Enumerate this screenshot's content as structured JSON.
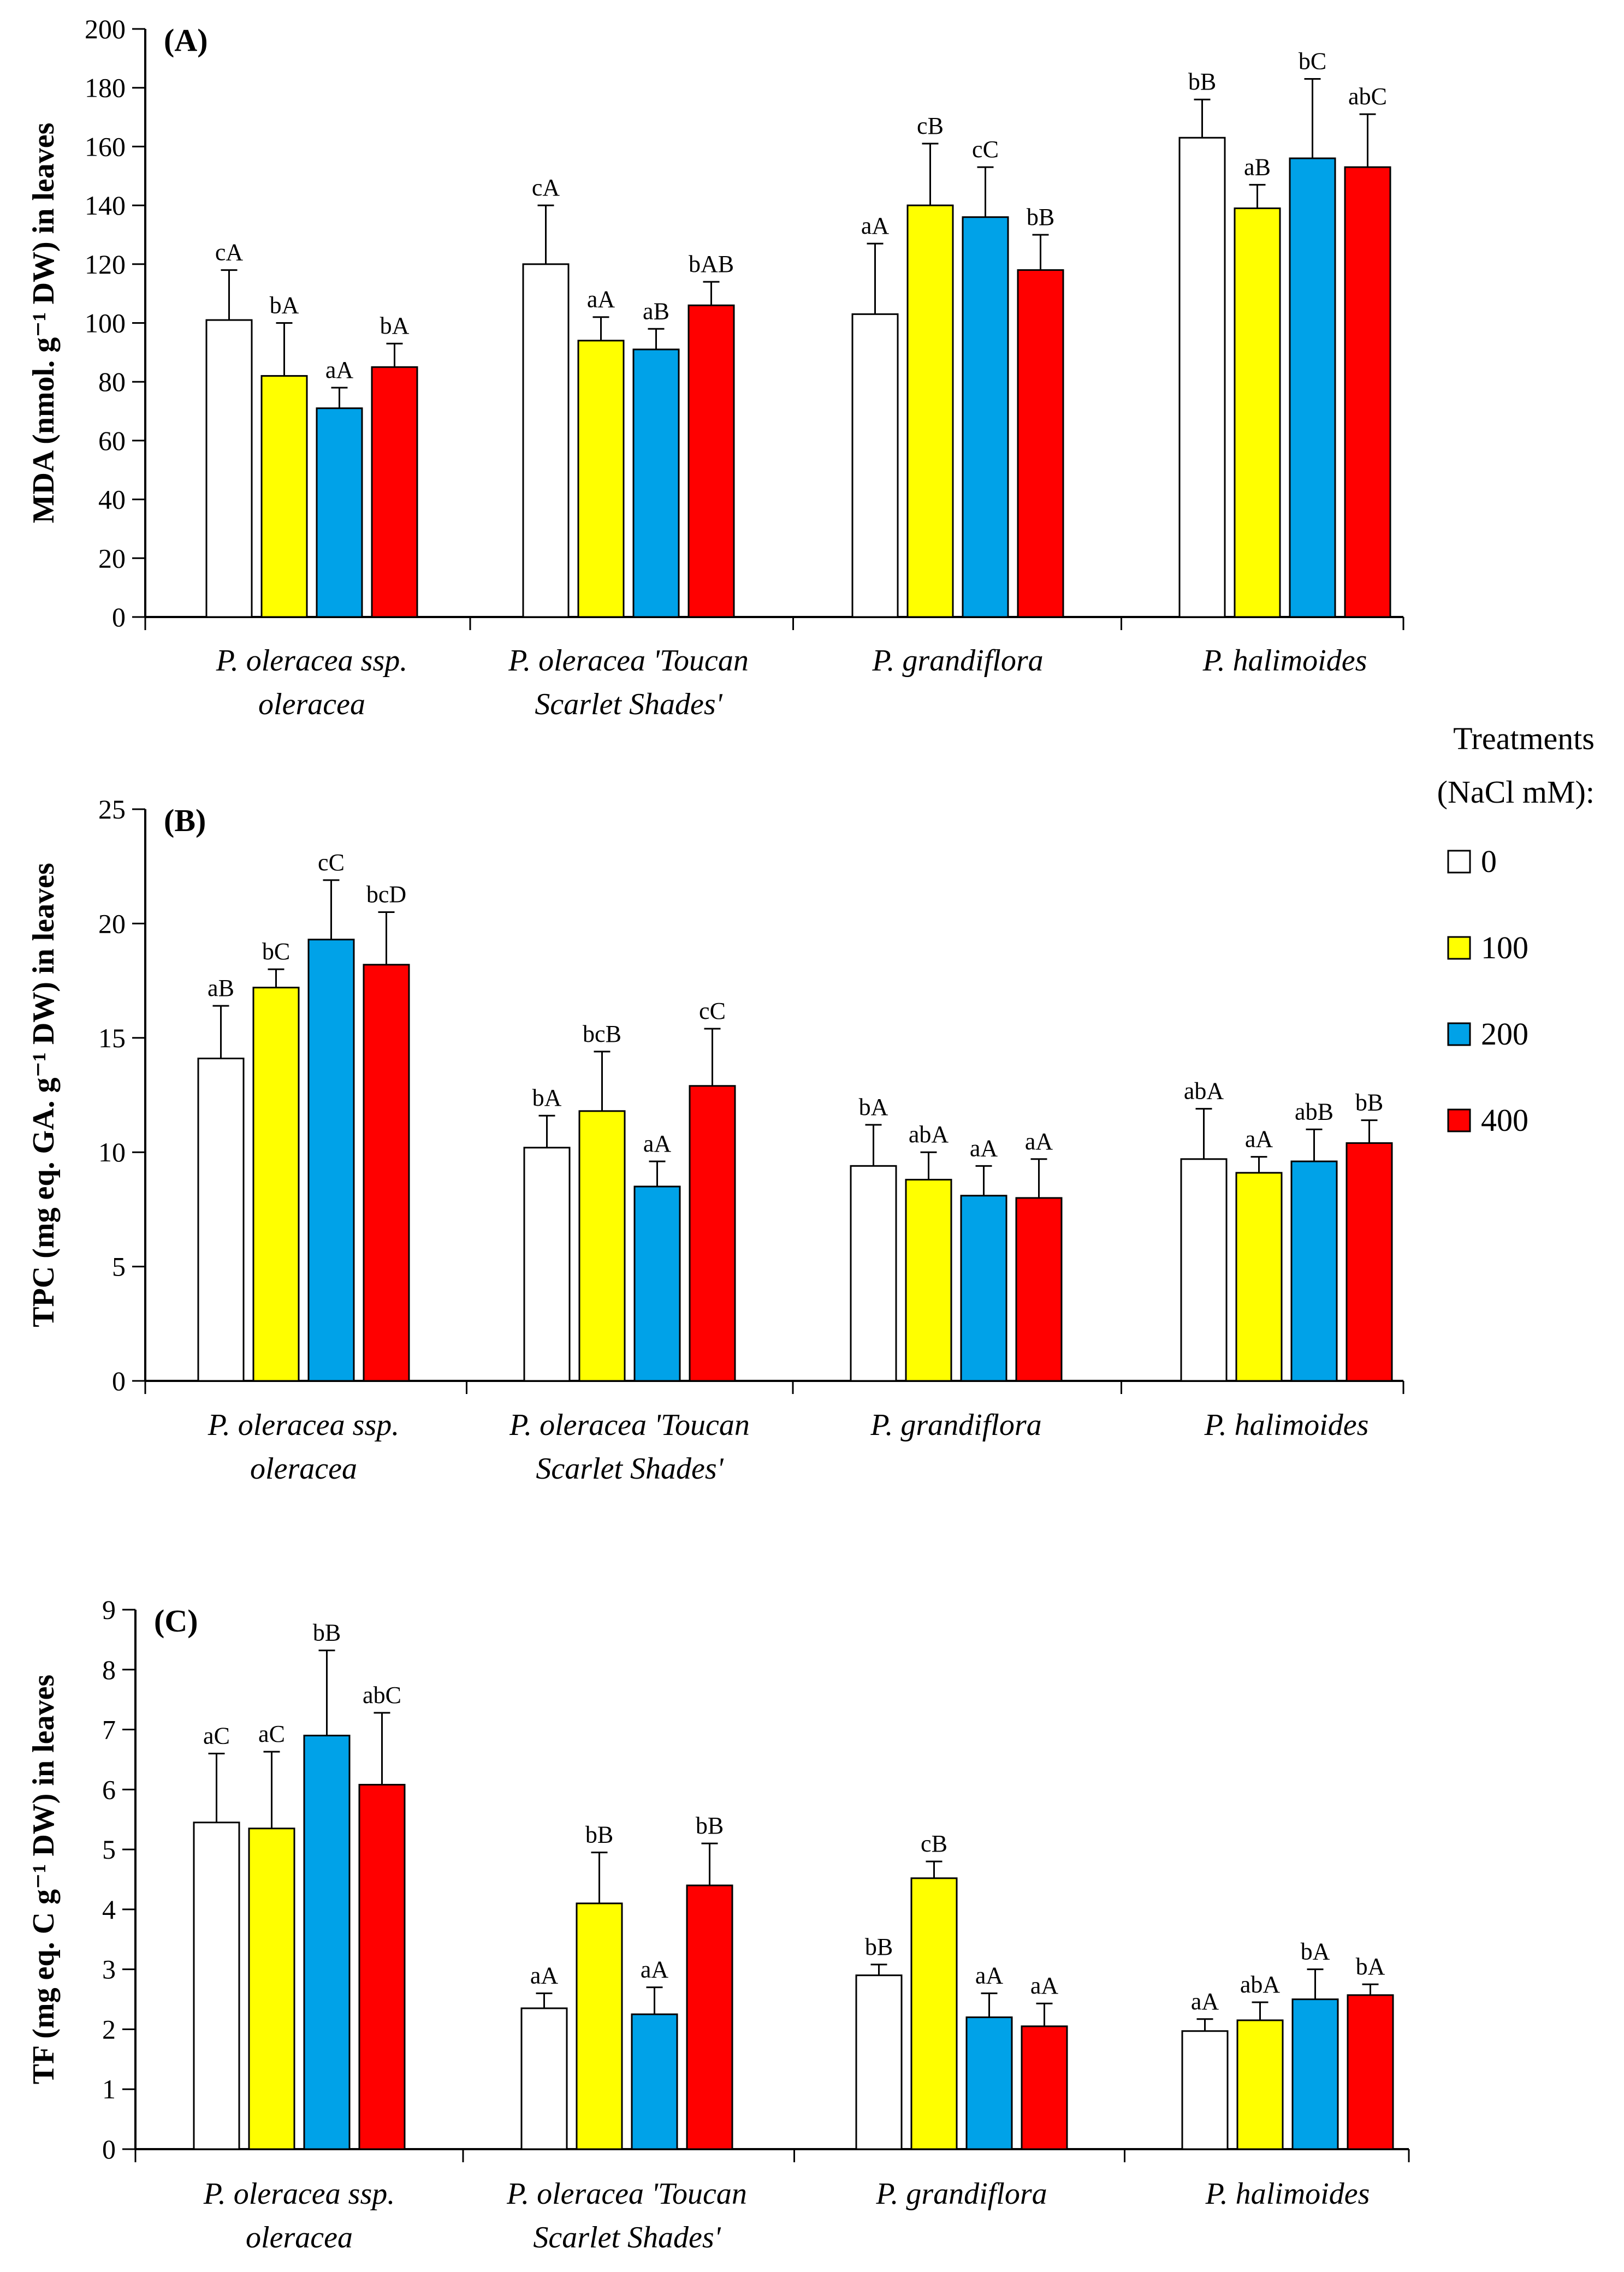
{
  "figure": {
    "legend": {
      "title_line1": "Treatments",
      "title_line2": "(NaCl mM):",
      "entries": [
        {
          "label": "0",
          "color": "#ffffff"
        },
        {
          "label": "100",
          "color": "#ffff00"
        },
        {
          "label": "200",
          "color": "#00a2e8"
        },
        {
          "label": "400",
          "color": "#ff0000"
        }
      ]
    }
  },
  "chart_data": [
    {
      "type": "bar",
      "panel_label": "(A)",
      "ylabel": "MDA (nmol. g⁻¹ DW) in leaves",
      "ylim": [
        0,
        200
      ],
      "yticks": [
        0,
        20,
        40,
        60,
        80,
        100,
        120,
        140,
        160,
        180,
        200
      ],
      "categories": [
        [
          "P. oleracea ssp.",
          "oleracea"
        ],
        [
          "P. oleracea 'Toucan",
          "Scarlet Shades'"
        ],
        [
          "P. grandiflora"
        ],
        [
          "P. halimoides"
        ]
      ],
      "series": [
        {
          "name": "0",
          "color": "#ffffff",
          "values": [
            101,
            120,
            103,
            163
          ],
          "errors": [
            17,
            20,
            24,
            13
          ],
          "labels": [
            "cA",
            "cA",
            "aA",
            "bB"
          ]
        },
        {
          "name": "100",
          "color": "#ffff00",
          "values": [
            82,
            94,
            140,
            139
          ],
          "errors": [
            18,
            8,
            21,
            8
          ],
          "labels": [
            "bA",
            "aA",
            "cB",
            "aB"
          ]
        },
        {
          "name": "200",
          "color": "#00a2e8",
          "values": [
            71,
            91,
            136,
            156
          ],
          "errors": [
            7,
            7,
            17,
            27
          ],
          "labels": [
            "aA",
            "aB",
            "cC",
            "bC"
          ]
        },
        {
          "name": "400",
          "color": "#ff0000",
          "values": [
            85,
            106,
            118,
            153
          ],
          "errors": [
            8,
            8,
            12,
            18
          ],
          "labels": [
            "bA",
            "bAB",
            "bB",
            "abC"
          ]
        }
      ]
    },
    {
      "type": "bar",
      "panel_label": "(B)",
      "ylabel": "TPC (mg eq. GA. g⁻¹ DW) in leaves",
      "ylim": [
        0,
        25
      ],
      "yticks": [
        0,
        5,
        10,
        15,
        20,
        25
      ],
      "categories": [
        [
          "P. oleracea ssp.",
          "oleracea"
        ],
        [
          "P. oleracea 'Toucan",
          "Scarlet Shades'"
        ],
        [
          "P. grandiflora"
        ],
        [
          "P. halimoides"
        ]
      ],
      "series": [
        {
          "name": "0",
          "color": "#ffffff",
          "values": [
            14.1,
            10.2,
            9.4,
            9.7
          ],
          "errors": [
            2.3,
            1.4,
            1.8,
            2.2
          ],
          "labels": [
            "aB",
            "bA",
            "bA",
            "abA"
          ]
        },
        {
          "name": "100",
          "color": "#ffff00",
          "values": [
            17.2,
            11.8,
            8.8,
            9.1
          ],
          "errors": [
            0.8,
            2.6,
            1.2,
            0.7
          ],
          "labels": [
            "bC",
            "bcB",
            "abA",
            "aA"
          ]
        },
        {
          "name": "200",
          "color": "#00a2e8",
          "values": [
            19.3,
            8.5,
            8.1,
            9.6
          ],
          "errors": [
            2.6,
            1.1,
            1.3,
            1.4
          ],
          "labels": [
            "cC",
            "aA",
            "aA",
            "abB"
          ]
        },
        {
          "name": "400",
          "color": "#ff0000",
          "values": [
            18.2,
            12.9,
            8.0,
            10.4
          ],
          "errors": [
            2.3,
            2.5,
            1.7,
            1.0
          ],
          "labels": [
            "bcD",
            "cC",
            "aA",
            "bB"
          ]
        }
      ]
    },
    {
      "type": "bar",
      "panel_label": "(C)",
      "ylabel": "TF (mg eq. C g⁻¹ DW) in leaves",
      "ylim": [
        0,
        9
      ],
      "yticks": [
        0,
        1,
        2,
        3,
        4,
        5,
        6,
        7,
        8,
        9
      ],
      "categories": [
        [
          "P. oleracea ssp.",
          "oleracea"
        ],
        [
          "P. oleracea 'Toucan",
          "Scarlet Shades'"
        ],
        [
          "P. grandiflora"
        ],
        [
          "P. halimoides"
        ]
      ],
      "series": [
        {
          "name": "0",
          "color": "#ffffff",
          "values": [
            5.45,
            2.35,
            2.9,
            1.97
          ],
          "errors": [
            1.15,
            0.25,
            0.18,
            0.2
          ],
          "labels": [
            "aC",
            "aA",
            "bB",
            "aA"
          ]
        },
        {
          "name": "100",
          "color": "#ffff00",
          "values": [
            5.35,
            4.1,
            4.52,
            2.15
          ],
          "errors": [
            1.28,
            0.85,
            0.28,
            0.3
          ],
          "labels": [
            "aC",
            "bB",
            "cB",
            "abA"
          ]
        },
        {
          "name": "200",
          "color": "#00a2e8",
          "values": [
            6.9,
            2.25,
            2.2,
            2.5
          ],
          "errors": [
            1.42,
            0.45,
            0.4,
            0.5
          ],
          "labels": [
            "bB",
            "aA",
            "aA",
            "bA"
          ]
        },
        {
          "name": "400",
          "color": "#ff0000",
          "values": [
            6.08,
            4.4,
            2.05,
            2.57
          ],
          "errors": [
            1.2,
            0.7,
            0.38,
            0.18
          ],
          "labels": [
            "abC",
            "bB",
            "aA",
            "bA"
          ]
        }
      ]
    }
  ]
}
